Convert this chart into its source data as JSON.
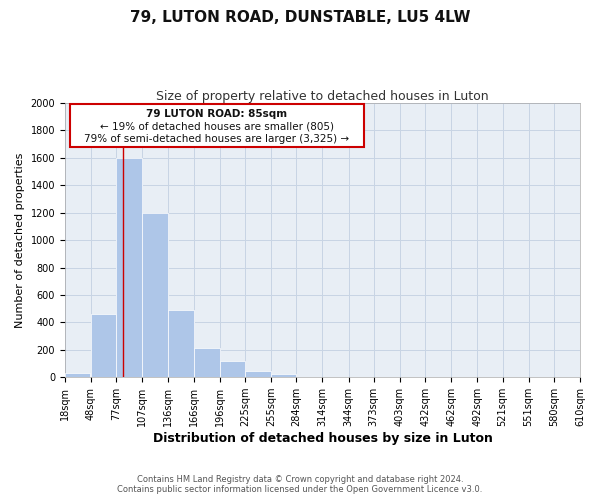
{
  "title": "79, LUTON ROAD, DUNSTABLE, LU5 4LW",
  "subtitle": "Size of property relative to detached houses in Luton",
  "xlabel": "Distribution of detached houses by size in Luton",
  "ylabel": "Number of detached properties",
  "bar_left_edges": [
    18,
    48,
    77,
    107,
    136,
    166,
    196,
    225,
    255,
    284,
    314,
    344,
    373,
    403,
    432,
    462,
    492,
    521,
    551,
    580
  ],
  "bar_widths": [
    29,
    29,
    30,
    29,
    30,
    30,
    29,
    30,
    29,
    30,
    30,
    29,
    30,
    29,
    30,
    30,
    29,
    30,
    29,
    30
  ],
  "bar_heights": [
    30,
    460,
    1600,
    1200,
    490,
    210,
    120,
    45,
    20,
    0,
    0,
    0,
    0,
    0,
    0,
    0,
    0,
    0,
    0,
    0
  ],
  "bar_color": "#aec6e8",
  "bar_edge_color": "#ffffff",
  "tick_labels": [
    "18sqm",
    "48sqm",
    "77sqm",
    "107sqm",
    "136sqm",
    "166sqm",
    "196sqm",
    "225sqm",
    "255sqm",
    "284sqm",
    "314sqm",
    "344sqm",
    "373sqm",
    "403sqm",
    "432sqm",
    "462sqm",
    "492sqm",
    "521sqm",
    "551sqm",
    "580sqm",
    "610sqm"
  ],
  "ylim": [
    0,
    2000
  ],
  "yticks": [
    0,
    200,
    400,
    600,
    800,
    1000,
    1200,
    1400,
    1600,
    1800,
    2000
  ],
  "xlim_left": 18,
  "xlim_right": 610,
  "property_line_x": 85,
  "property_line_color": "#cc0000",
  "ann_line1": "79 LUTON ROAD: 85sqm",
  "ann_line2": "← 19% of detached houses are smaller (805)",
  "ann_line3": "79% of semi-detached houses are larger (3,325) →",
  "footer_line1": "Contains HM Land Registry data © Crown copyright and database right 2024.",
  "footer_line2": "Contains public sector information licensed under the Open Government Licence v3.0.",
  "background_color": "#ffffff",
  "axes_bg_color": "#e8eef5",
  "grid_color": "#c8d4e4",
  "title_fontsize": 11,
  "subtitle_fontsize": 9,
  "ylabel_fontsize": 8,
  "xlabel_fontsize": 9,
  "tick_fontsize": 7,
  "footer_fontsize": 6
}
